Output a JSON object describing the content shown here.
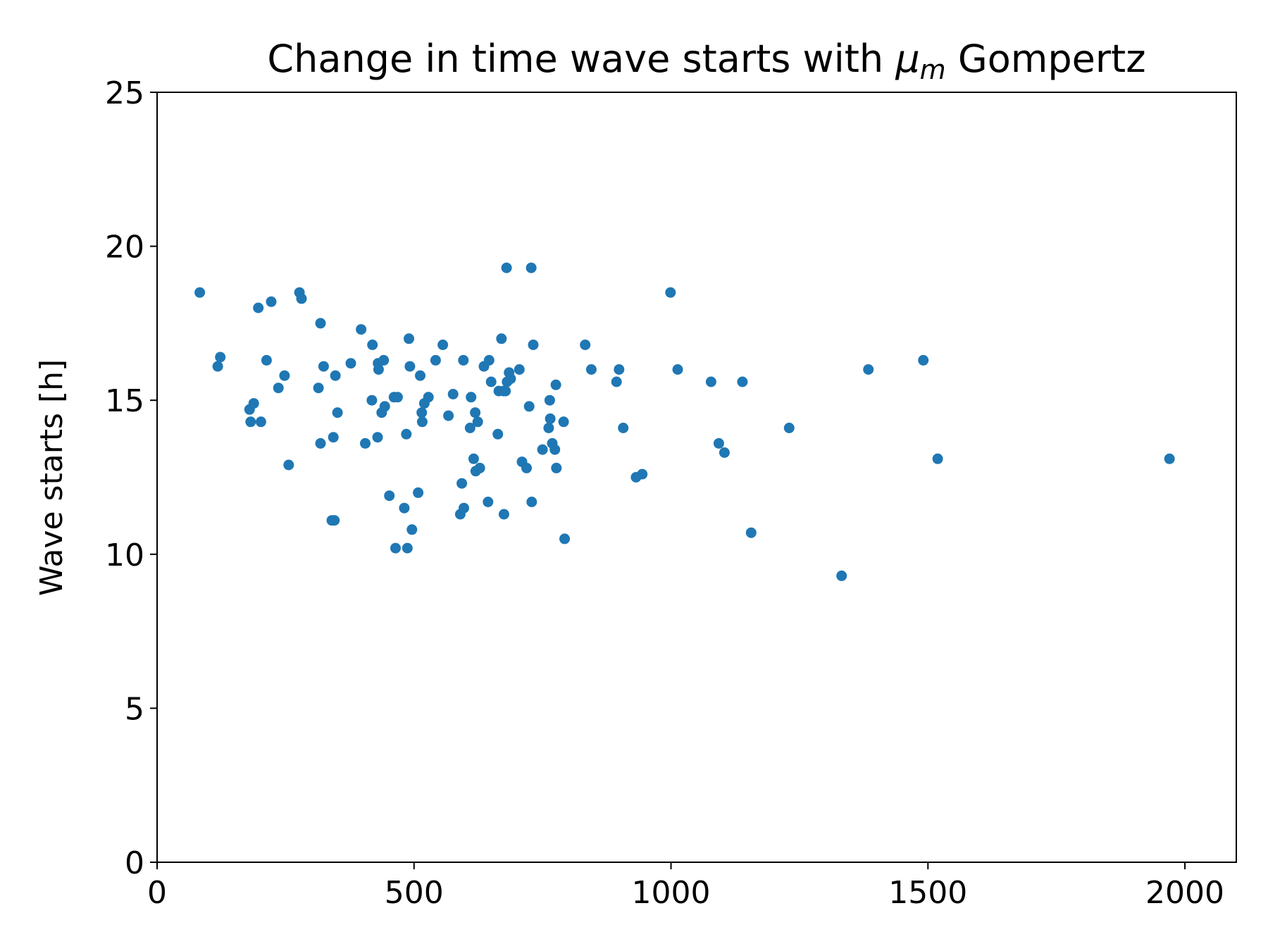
{
  "chart_data": {
    "type": "scatter",
    "title": "Change in time wave starts with",
    "title_math_symbol": "μ",
    "title_math_subscript": "m",
    "title_suffix": " Gompertz",
    "xlabel": "",
    "ylabel": "Wave starts [h]",
    "xlim": [
      0,
      2100
    ],
    "ylim": [
      0,
      25
    ],
    "xticks": [
      0,
      500,
      1000,
      1500,
      2000
    ],
    "yticks": [
      0,
      5,
      10,
      15,
      20,
      25
    ],
    "grid": false,
    "marker_color": "#1f77b4",
    "points": [
      [
        83,
        18.5
      ],
      [
        118,
        16.1
      ],
      [
        123,
        16.4
      ],
      [
        180,
        14.7
      ],
      [
        182,
        14.3
      ],
      [
        188,
        14.9
      ],
      [
        197,
        18.0
      ],
      [
        202,
        14.3
      ],
      [
        213,
        16.3
      ],
      [
        222,
        18.2
      ],
      [
        236,
        15.4
      ],
      [
        248,
        15.8
      ],
      [
        256,
        12.9
      ],
      [
        277,
        18.5
      ],
      [
        281,
        18.3
      ],
      [
        314,
        15.4
      ],
      [
        318,
        17.5
      ],
      [
        318,
        13.6
      ],
      [
        324,
        16.1
      ],
      [
        340,
        11.1
      ],
      [
        343,
        13.8
      ],
      [
        345,
        11.1
      ],
      [
        347,
        15.8
      ],
      [
        351,
        14.6
      ],
      [
        377,
        16.2
      ],
      [
        397,
        17.3
      ],
      [
        405,
        13.6
      ],
      [
        418,
        15.0
      ],
      [
        419,
        16.8
      ],
      [
        429,
        13.8
      ],
      [
        430,
        16.2
      ],
      [
        431,
        16.0
      ],
      [
        437,
        14.6
      ],
      [
        441,
        16.3
      ],
      [
        443,
        14.8
      ],
      [
        452,
        11.9
      ],
      [
        461,
        15.1
      ],
      [
        464,
        10.2
      ],
      [
        468,
        15.1
      ],
      [
        481,
        11.5
      ],
      [
        485,
        13.9
      ],
      [
        487,
        10.2
      ],
      [
        490,
        17.0
      ],
      [
        492,
        16.1
      ],
      [
        496,
        10.8
      ],
      [
        508,
        12.0
      ],
      [
        512,
        15.8
      ],
      [
        515,
        14.6
      ],
      [
        516,
        14.3
      ],
      [
        520,
        14.9
      ],
      [
        528,
        15.1
      ],
      [
        542,
        16.3
      ],
      [
        556,
        16.8
      ],
      [
        567,
        14.5
      ],
      [
        576,
        15.2
      ],
      [
        590,
        11.3
      ],
      [
        593,
        12.3
      ],
      [
        596,
        16.3
      ],
      [
        597,
        11.5
      ],
      [
        609,
        14.1
      ],
      [
        611,
        15.1
      ],
      [
        616,
        13.1
      ],
      [
        619,
        14.6
      ],
      [
        620,
        12.7
      ],
      [
        624,
        14.3
      ],
      [
        628,
        12.8
      ],
      [
        636,
        16.1
      ],
      [
        644,
        11.7
      ],
      [
        646,
        16.3
      ],
      [
        650,
        15.6
      ],
      [
        663,
        13.9
      ],
      [
        665,
        15.3
      ],
      [
        670,
        17.0
      ],
      [
        674,
        15.3
      ],
      [
        675,
        11.3
      ],
      [
        678,
        15.3
      ],
      [
        680,
        19.3
      ],
      [
        681,
        15.6
      ],
      [
        685,
        15.9
      ],
      [
        688,
        15.7
      ],
      [
        705,
        16.0
      ],
      [
        710,
        13.0
      ],
      [
        719,
        12.8
      ],
      [
        724,
        14.8
      ],
      [
        728,
        19.3
      ],
      [
        729,
        11.7
      ],
      [
        732,
        16.8
      ],
      [
        750,
        13.4
      ],
      [
        762,
        14.1
      ],
      [
        764,
        15.0
      ],
      [
        765,
        14.4
      ],
      [
        769,
        13.6
      ],
      [
        774,
        13.4
      ],
      [
        776,
        15.5
      ],
      [
        777,
        12.8
      ],
      [
        791,
        14.3
      ],
      [
        793,
        10.5
      ],
      [
        833,
        16.8
      ],
      [
        845,
        16.0
      ],
      [
        894,
        15.6
      ],
      [
        899,
        16.0
      ],
      [
        907,
        14.1
      ],
      [
        932,
        12.5
      ],
      [
        944,
        12.6
      ],
      [
        999,
        18.5
      ],
      [
        1013,
        16.0
      ],
      [
        1078,
        15.6
      ],
      [
        1093,
        13.6
      ],
      [
        1104,
        13.3
      ],
      [
        1139,
        15.6
      ],
      [
        1156,
        10.7
      ],
      [
        1230,
        14.1
      ],
      [
        1332,
        9.3
      ],
      [
        1384,
        16.0
      ],
      [
        1491,
        16.3
      ],
      [
        1519,
        13.1
      ],
      [
        1970,
        13.1
      ]
    ]
  }
}
